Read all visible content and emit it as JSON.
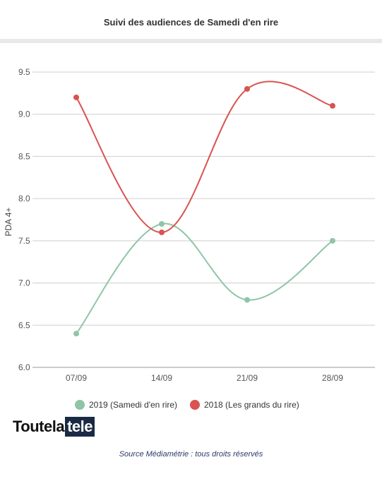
{
  "chart_data": {
    "type": "line",
    "title": "Suivi des audiences de Samedi d'en rire",
    "ylabel": "PDA 4+",
    "xlabel": "",
    "categories": [
      "07/09",
      "14/09",
      "21/09",
      "28/09"
    ],
    "ylim": [
      6.0,
      9.5
    ],
    "yticks": [
      "6.0",
      "6.5",
      "7.0",
      "7.5",
      "8.0",
      "8.5",
      "9.0",
      "9.5"
    ],
    "grid": true,
    "legend_position": "bottom",
    "series": [
      {
        "name": "2019 (Samedi d'en rire)",
        "color": "#8fc5a6",
        "values": [
          6.4,
          7.7,
          6.8,
          7.5
        ]
      },
      {
        "name": "2018 (Les grands du rire)",
        "color": "#d9534f",
        "values": [
          9.2,
          7.6,
          9.3,
          9.1
        ]
      }
    ]
  },
  "logo": {
    "part1": "Toutela",
    "part2": "tele"
  },
  "source": "Source Médiamétrie : tous droits réservés"
}
